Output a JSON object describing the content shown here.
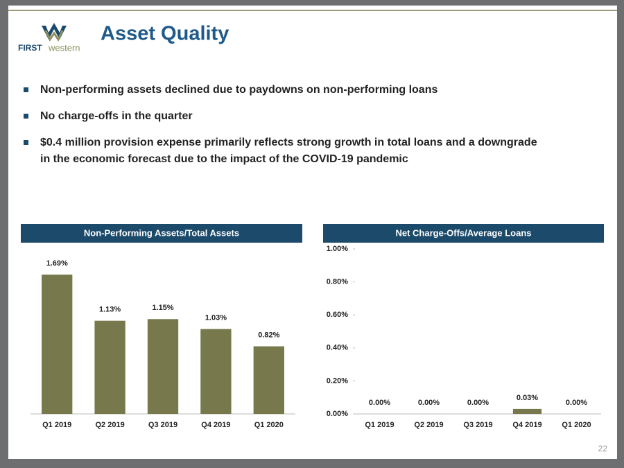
{
  "header": {
    "logo_first": "FIRST",
    "logo_western": "western",
    "title": "Asset Quality"
  },
  "bullets": [
    "Non-performing assets declined due to paydowns on non-performing loans",
    "No charge-offs in the quarter",
    "$0.4 million provision expense primarily reflects strong growth in total loans and a downgrade in the economic forecast due to the impact of the COVID-19 pandemic"
  ],
  "page_number": "22",
  "chart_data": [
    {
      "type": "bar",
      "title": "Non-Performing Assets/Total Assets",
      "categories": [
        "Q1 2019",
        "Q2 2019",
        "Q3 2019",
        "Q4 2019",
        "Q1 2020"
      ],
      "values": [
        1.69,
        1.13,
        1.15,
        1.03,
        0.82
      ],
      "value_labels": [
        "1.69%",
        "1.13%",
        "1.15%",
        "1.03%",
        "0.82%"
      ],
      "color": "#77794c",
      "ylim": [
        0,
        1.8
      ]
    },
    {
      "type": "bar",
      "title": "Net Charge-Offs/Average Loans",
      "categories": [
        "Q1 2019",
        "Q2 2019",
        "Q3 2019",
        "Q4 2019",
        "Q1 2020"
      ],
      "values": [
        0,
        0,
        0,
        0.03,
        0
      ],
      "value_labels": [
        "0.00%",
        "0.00%",
        "0.00%",
        "0.03%",
        "0.00%"
      ],
      "color": "#77794c",
      "ylim": [
        0,
        1
      ],
      "yticks": [
        {
          "value": 0,
          "label": "0.00%"
        },
        {
          "value": 0.2,
          "label": "0.20%"
        },
        {
          "value": 0.4,
          "label": "0.40%"
        },
        {
          "value": 0.6,
          "label": "0.60%"
        },
        {
          "value": 0.8,
          "label": "0.80%"
        },
        {
          "value": 1,
          "label": "1.00%"
        }
      ]
    }
  ]
}
